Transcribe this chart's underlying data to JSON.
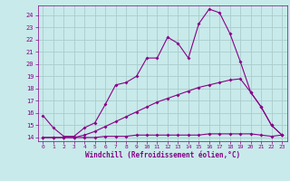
{
  "xlabel": "Windchill (Refroidissement éolien,°C)",
  "bg_color": "#c8eaea",
  "line_color": "#880088",
  "grid_color": "#aacccc",
  "xlim": [
    -0.5,
    23.5
  ],
  "ylim": [
    13.7,
    24.8
  ],
  "yticks": [
    14,
    15,
    16,
    17,
    18,
    19,
    20,
    21,
    22,
    23,
    24
  ],
  "xticks": [
    0,
    1,
    2,
    3,
    4,
    5,
    6,
    7,
    8,
    9,
    10,
    11,
    12,
    13,
    14,
    15,
    16,
    17,
    18,
    19,
    20,
    21,
    22,
    23
  ],
  "line1_x": [
    0,
    1,
    2,
    3,
    4,
    5,
    6,
    7,
    8,
    9,
    10,
    11,
    12,
    13,
    14,
    15,
    16,
    17,
    18,
    19,
    20,
    21,
    22,
    23
  ],
  "line1_y": [
    15.8,
    14.8,
    14.1,
    14.1,
    14.8,
    15.2,
    16.7,
    18.3,
    18.5,
    19.0,
    20.5,
    20.5,
    22.2,
    21.7,
    20.5,
    23.3,
    24.5,
    24.2,
    22.5,
    20.2,
    17.7,
    16.5,
    15.0,
    14.2
  ],
  "line2_x": [
    0,
    1,
    2,
    3,
    4,
    5,
    6,
    7,
    8,
    9,
    10,
    11,
    12,
    13,
    14,
    15,
    16,
    17,
    18,
    19,
    20,
    21,
    22,
    23
  ],
  "line2_y": [
    14.0,
    14.0,
    14.0,
    14.0,
    14.2,
    14.5,
    14.9,
    15.3,
    15.7,
    16.1,
    16.5,
    16.9,
    17.2,
    17.5,
    17.8,
    18.1,
    18.3,
    18.5,
    18.7,
    18.8,
    17.7,
    16.5,
    15.0,
    14.2
  ],
  "line3_x": [
    0,
    1,
    2,
    3,
    4,
    5,
    6,
    7,
    8,
    9,
    10,
    11,
    12,
    13,
    14,
    15,
    16,
    17,
    18,
    19,
    20,
    21,
    22,
    23
  ],
  "line3_y": [
    14.0,
    14.0,
    14.0,
    14.0,
    14.0,
    14.0,
    14.1,
    14.1,
    14.1,
    14.2,
    14.2,
    14.2,
    14.2,
    14.2,
    14.2,
    14.2,
    14.3,
    14.3,
    14.3,
    14.3,
    14.3,
    14.2,
    14.1,
    14.2
  ]
}
